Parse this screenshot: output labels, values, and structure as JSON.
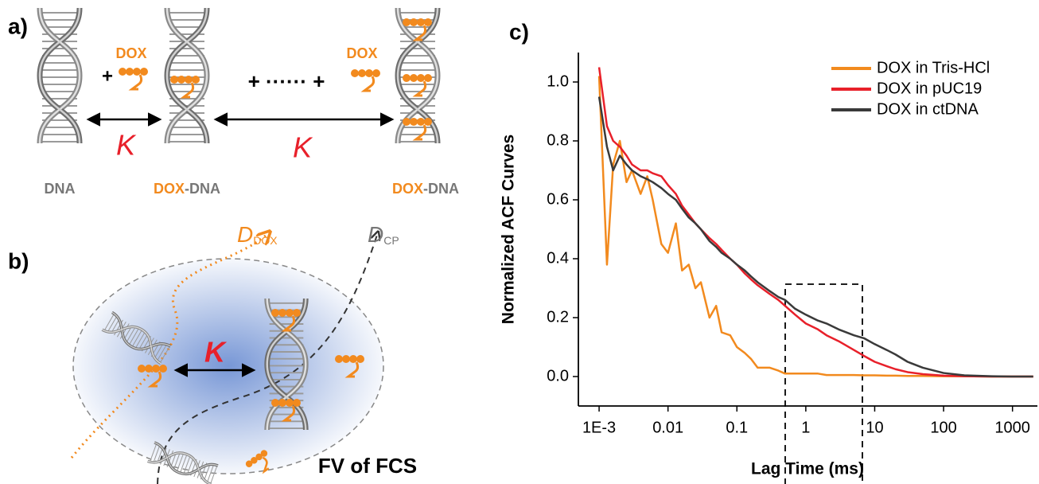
{
  "panel_a": {
    "label": "a)",
    "dox_labels": [
      "DOX",
      "DOX"
    ],
    "plus": "+",
    "chain": "+ ······ +",
    "k_labels": [
      "K",
      "K"
    ],
    "dna_label": "DNA",
    "complex_labels": [
      [
        "DOX",
        "-DNA"
      ],
      [
        "DOX",
        "-DNA"
      ]
    ]
  },
  "panel_b": {
    "label": "b)",
    "d_dox": {
      "symbol": "D",
      "sub": "DOX"
    },
    "d_cp": {
      "symbol": "D",
      "sub": "CP"
    },
    "k_label": "K",
    "volume_label": "FV of FCS"
  },
  "chart_data": {
    "type": "line",
    "panel_label": "c)",
    "xlabel": "Lag Time (ms)",
    "ylabel": "Normalized ACF Curves",
    "xscale": "log",
    "xlim": [
      0.0005,
      2300
    ],
    "ylim": [
      -0.1,
      1.1
    ],
    "xticks": [
      {
        "value": 0.001,
        "label": "1E-3"
      },
      0.01,
      0.1,
      1,
      10,
      100,
      1000
    ],
    "yticks": [
      {
        "value": 0,
        "label": "0.0"
      },
      0.2,
      0.4,
      0.6,
      0.8,
      {
        "value": 1,
        "label": "1.0"
      }
    ],
    "legend": "upper right",
    "x": [
      0.001,
      0.0013,
      0.0016,
      0.002,
      0.0025,
      0.003,
      0.004,
      0.005,
      0.006,
      0.008,
      0.01,
      0.013,
      0.016,
      0.02,
      0.025,
      0.03,
      0.04,
      0.05,
      0.06,
      0.08,
      0.1,
      0.13,
      0.16,
      0.2,
      0.3,
      0.4,
      0.5,
      0.7,
      1,
      1.5,
      2,
      3,
      5,
      7,
      10,
      15,
      20,
      30,
      50,
      100,
      200,
      500,
      1000,
      2000
    ],
    "series": [
      {
        "name": "DOX in Tris-HCl",
        "color": "#f28a1e",
        "values": [
          1.02,
          0.38,
          0.72,
          0.8,
          0.66,
          0.7,
          0.62,
          0.68,
          0.6,
          0.45,
          0.42,
          0.52,
          0.36,
          0.38,
          0.3,
          0.32,
          0.2,
          0.24,
          0.15,
          0.14,
          0.1,
          0.08,
          0.06,
          0.03,
          0.03,
          0.02,
          0.01,
          0.01,
          0.01,
          0.01,
          0.005,
          0.005,
          0.005,
          0.004,
          0.004,
          0.003,
          0.003,
          0.002,
          0.002,
          0.001,
          0.001,
          0,
          0,
          0
        ]
      },
      {
        "name": "DOX in pUC19",
        "color": "#e8202a",
        "values": [
          1.05,
          0.85,
          0.8,
          0.78,
          0.75,
          0.72,
          0.7,
          0.7,
          0.69,
          0.68,
          0.65,
          0.62,
          0.58,
          0.55,
          0.52,
          0.5,
          0.47,
          0.45,
          0.43,
          0.4,
          0.38,
          0.35,
          0.33,
          0.31,
          0.28,
          0.26,
          0.24,
          0.21,
          0.18,
          0.16,
          0.14,
          0.12,
          0.09,
          0.07,
          0.05,
          0.035,
          0.025,
          0.015,
          0.008,
          0.003,
          0.001,
          0,
          0,
          0
        ]
      },
      {
        "name": "DOX in ctDNA",
        "color": "#3a3a3a",
        "values": [
          0.95,
          0.78,
          0.7,
          0.75,
          0.72,
          0.7,
          0.68,
          0.67,
          0.66,
          0.64,
          0.62,
          0.6,
          0.57,
          0.54,
          0.52,
          0.5,
          0.46,
          0.44,
          0.42,
          0.4,
          0.38,
          0.36,
          0.34,
          0.32,
          0.29,
          0.27,
          0.26,
          0.23,
          0.21,
          0.19,
          0.18,
          0.16,
          0.14,
          0.13,
          0.11,
          0.09,
          0.075,
          0.05,
          0.03,
          0.012,
          0.004,
          0.001,
          0,
          0
        ]
      }
    ]
  }
}
